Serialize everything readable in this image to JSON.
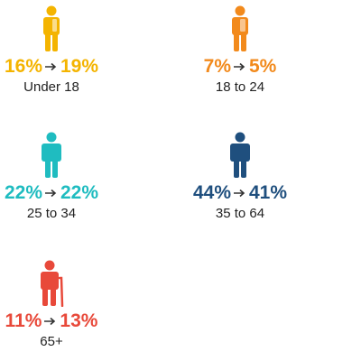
{
  "groups": [
    {
      "label": "Under 18",
      "from": "16%",
      "to": "19%",
      "color": "#f4b400",
      "icon": "child-person-icon"
    },
    {
      "label": "18 to 24",
      "from": "7%",
      "to": "5%",
      "color": "#f28a1c",
      "icon": "young-person-icon"
    },
    {
      "label": "25 to 34",
      "from": "22%",
      "to": "22%",
      "color": "#1fbcc0",
      "icon": "adult-person-icon"
    },
    {
      "label": "35 to 64",
      "from": "44%",
      "to": "41%",
      "color": "#1f4f7e",
      "icon": "adult-person-icon"
    },
    {
      "label": "65+",
      "from": "11%",
      "to": "13%",
      "color": "#e8493a",
      "icon": "elderly-person-cane-icon"
    }
  ]
}
